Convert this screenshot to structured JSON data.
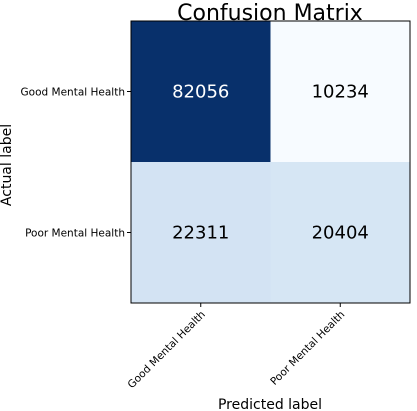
{
  "chart_data": {
    "type": "heatmap",
    "title": "Confusion Matrix",
    "xlabel": "Predicted label",
    "ylabel": "Actual label",
    "x_categories": [
      "Good Mental Health",
      "Poor Mental Health"
    ],
    "y_categories": [
      "Good Mental Health",
      "Poor Mental Health"
    ],
    "values": [
      [
        82056,
        10234
      ],
      [
        22311,
        20404
      ]
    ],
    "colormap": "Blues",
    "colors": {
      "cell_colors": [
        [
          "#08306b",
          "#f7fbff"
        ],
        [
          "#d3e3f3",
          "#d6e6f4"
        ]
      ],
      "text_colors": [
        [
          "#ffffff",
          "#000000"
        ],
        [
          "#000000",
          "#000000"
        ]
      ]
    }
  }
}
